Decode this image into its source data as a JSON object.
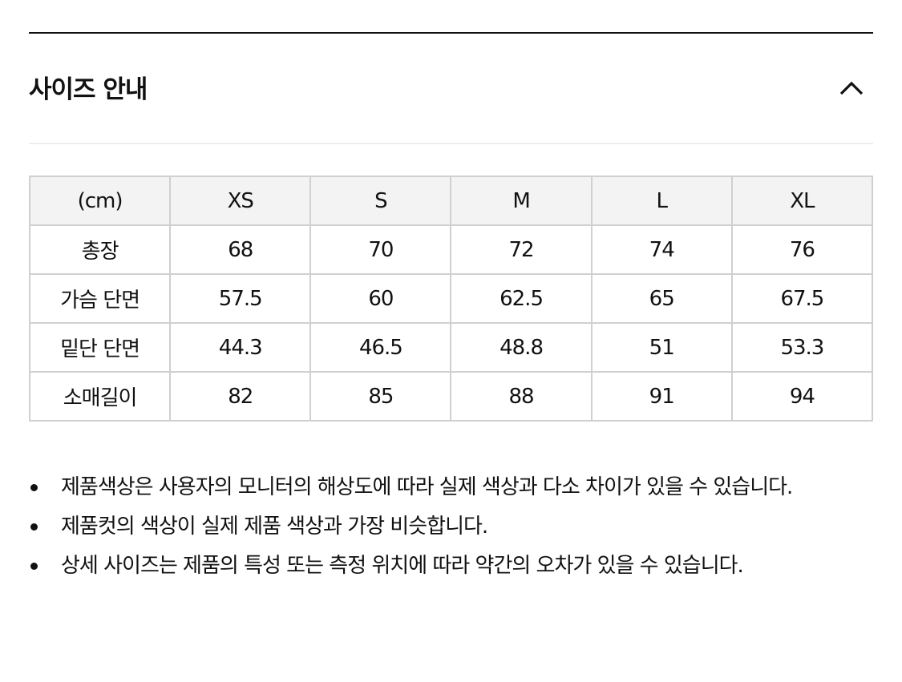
{
  "section": {
    "title": "사이즈 안내",
    "toggle_icon": "chevron-up-icon"
  },
  "table": {
    "headers": [
      "(cm)",
      "XS",
      "S",
      "M",
      "L",
      "XL"
    ],
    "rows": [
      [
        "총장",
        "68",
        "70",
        "72",
        "74",
        "76"
      ],
      [
        "가슴 단면",
        "57.5",
        "60",
        "62.5",
        "65",
        "67.5"
      ],
      [
        "밑단 단면",
        "44.3",
        "46.5",
        "48.8",
        "51",
        "53.3"
      ],
      [
        "소매길이",
        "82",
        "85",
        "88",
        "91",
        "94"
      ]
    ]
  },
  "notes": [
    "제품색상은 사용자의 모니터의 해상도에 따라 실제 색상과 다소 차이가 있을 수 있습니다.",
    "제품컷의 색상이 실제 제품 색상과 가장 비슷합니다.",
    "상세 사이즈는 제품의 특성 또는 측정 위치에 따라 약간의 오차가 있을 수 있습니다."
  ]
}
